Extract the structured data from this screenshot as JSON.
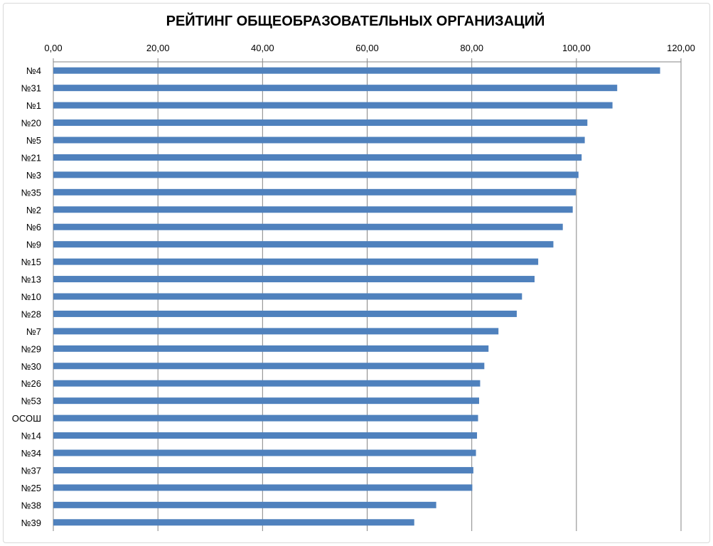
{
  "chart_data": {
    "type": "bar",
    "orientation": "horizontal",
    "title": "РЕЙТИНГ ОБЩЕОБРАЗОВАТЕЛЬНЫХ ОРГАНИЗАЦИЙ",
    "xlabel": "",
    "ylabel": "",
    "xlim": [
      0,
      120
    ],
    "x_ticks": [
      "0,00",
      "20,00",
      "40,00",
      "60,00",
      "80,00",
      "100,00",
      "120,00"
    ],
    "x_axis_position": "top",
    "grid": true,
    "legend": "none",
    "bar_color": "#4f81bd",
    "categories": [
      "№4",
      "№31",
      "№1",
      "№20",
      "№5",
      "№21",
      "№3",
      "№35",
      "№2",
      "№6",
      "№9",
      "№15",
      "№13",
      "№10",
      "№28",
      "№7",
      "№29",
      "№30",
      "№26",
      "№53",
      "ОСОШ",
      "№14",
      "№34",
      "№37",
      "№25",
      "№38",
      "№39"
    ],
    "values": [
      116.0,
      107.8,
      106.9,
      102.1,
      101.6,
      101.0,
      100.4,
      99.9,
      99.3,
      97.4,
      95.6,
      92.7,
      92.0,
      89.6,
      88.6,
      85.1,
      83.2,
      82.4,
      81.6,
      81.4,
      81.2,
      81.0,
      80.8,
      80.3,
      80.1,
      73.2,
      69.0
    ]
  }
}
